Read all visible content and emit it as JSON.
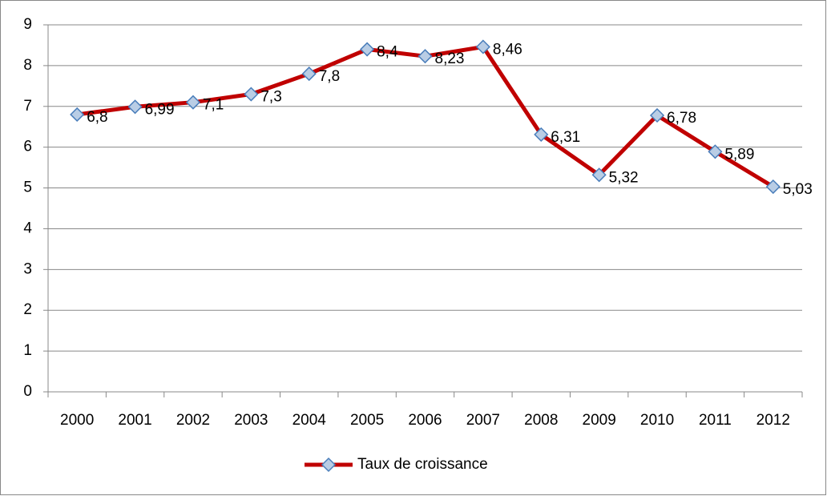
{
  "chart_data": {
    "type": "line",
    "categories": [
      "2000",
      "2001",
      "2002",
      "2003",
      "2004",
      "2005",
      "2006",
      "2007",
      "2008",
      "2009",
      "2010",
      "2011",
      "2012"
    ],
    "series": [
      {
        "name": "Taux de croissance",
        "color": "#c00000",
        "marker_fill": "#b9cde5",
        "marker_stroke": "#4a7ebb",
        "values": [
          6.8,
          6.99,
          7.1,
          7.3,
          7.8,
          8.4,
          8.23,
          8.46,
          6.31,
          5.32,
          6.78,
          5.89,
          5.03
        ],
        "value_labels": [
          "6,8",
          "6,99",
          "7,1",
          "7,3",
          "7,8",
          "8,4",
          "8,23",
          "8,46",
          "6,31",
          "5,32",
          "6,78",
          "5,89",
          "5,03"
        ]
      }
    ],
    "ylim": [
      0,
      9
    ],
    "yticks": [
      0,
      1,
      2,
      3,
      4,
      5,
      6,
      7,
      8,
      9
    ],
    "grid": true,
    "legend": "bottom"
  }
}
